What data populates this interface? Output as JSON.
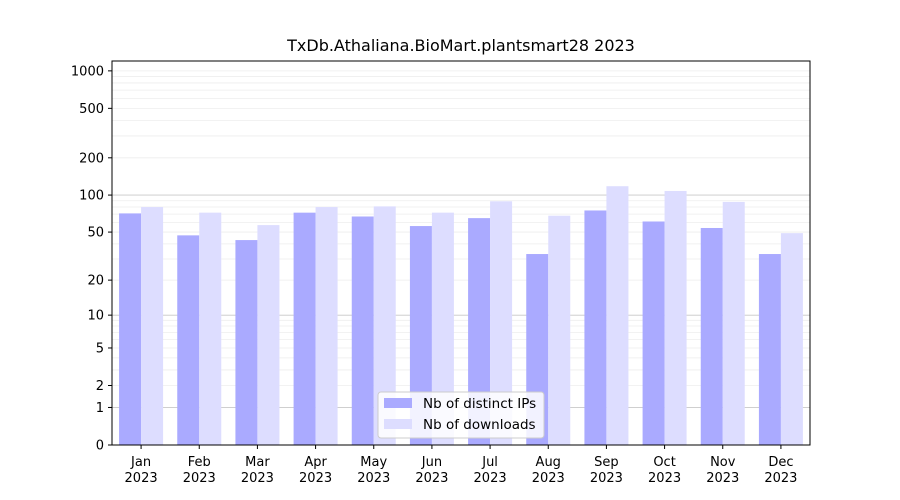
{
  "chart_data": {
    "type": "bar",
    "title": "TxDb.Athaliana.BioMart.plantsmart28 2023",
    "xlabel": "",
    "ylabel": "",
    "yscale": "log1p",
    "ylim": [
      0,
      1200
    ],
    "y_ticks": [
      0,
      1,
      2,
      5,
      10,
      20,
      50,
      100,
      200,
      500,
      1000
    ],
    "categories": [
      "Jan\n2023",
      "Feb\n2023",
      "Mar\n2023",
      "Apr\n2023",
      "May\n2023",
      "Jun\n2023",
      "Jul\n2023",
      "Aug\n2023",
      "Sep\n2023",
      "Oct\n2023",
      "Nov\n2023",
      "Dec\n2023"
    ],
    "series": [
      {
        "name": "Nb of distinct IPs",
        "color": "#aaaaff",
        "values": [
          71,
          47,
          43,
          72,
          67,
          56,
          65,
          33,
          75,
          61,
          54,
          33
        ]
      },
      {
        "name": "Nb of downloads",
        "color": "#ddddff",
        "values": [
          80,
          72,
          57,
          80,
          81,
          72,
          89,
          68,
          118,
          108,
          88,
          49
        ]
      }
    ],
    "grid": true,
    "legend_position": "bottom-center"
  }
}
